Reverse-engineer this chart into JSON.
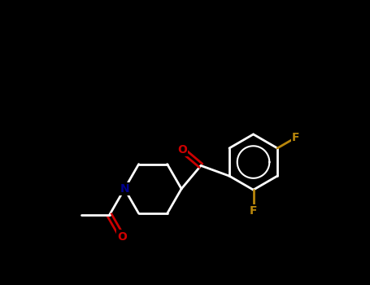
{
  "background_color": "#000000",
  "bond_color": "#ffffff",
  "atom_colors": {
    "O": "#cc0000",
    "N": "#00008b",
    "F": "#b8860b"
  },
  "line_width": 2.0,
  "font_size": 10,
  "figsize": [
    4.55,
    3.5
  ],
  "dpi": 100,
  "xlim": [
    0,
    10
  ],
  "ylim": [
    0,
    8
  ]
}
